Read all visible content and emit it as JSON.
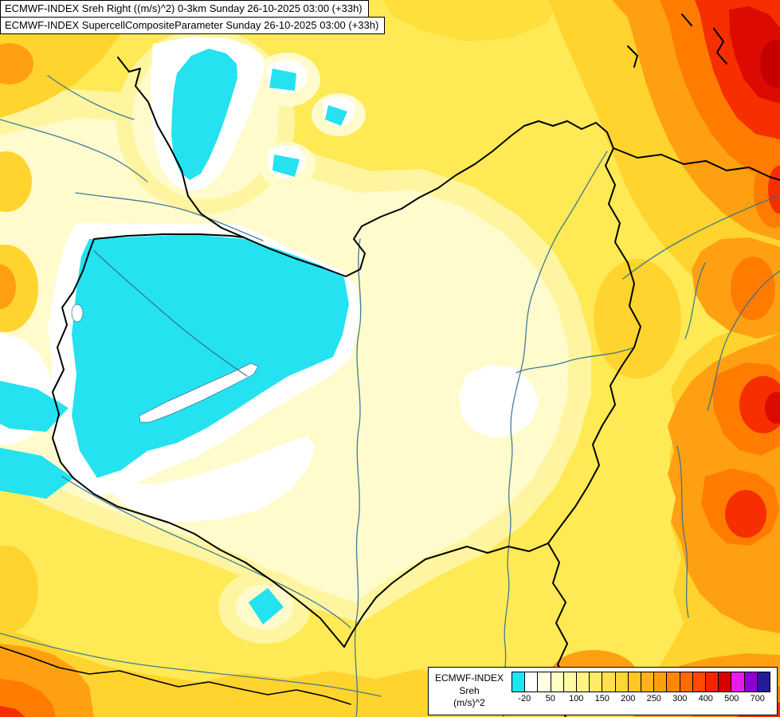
{
  "header": {
    "line1": "ECMWF-INDEX Sreh Right ((m/s)^2) 0-3km Sunday 26-10-2025 03:00 (+33h)",
    "line2": "ECMWF-INDEX SupercellCompositeParameter Sunday 26-10-2025 03:00 (+33h)"
  },
  "legend": {
    "title_line1": "ECMWF-INDEX",
    "title_line2": "Sreh",
    "title_line3": "(m/s)^2",
    "tick_labels": [
      "-20",
      "50",
      "100",
      "150",
      "200",
      "250",
      "300",
      "400",
      "500",
      "700"
    ],
    "colors": [
      "#1FE4F2",
      "#FFFFFF",
      "#FFFFE4",
      "#FFFFC4",
      "#FFF9A4",
      "#FFF286",
      "#FFE969",
      "#FFDF4E",
      "#FFD435",
      "#FFC524",
      "#FFB318",
      "#FF9E0C",
      "#FF8602",
      "#FF6B00",
      "#FF4A00",
      "#F22500",
      "#D90000",
      "#E81CE8",
      "#8F00D4",
      "#241C96"
    ]
  },
  "map_palette": {
    "base_yellow": "#FFE955",
    "pale_band": "#FFF5A0",
    "cream_band": "#FFFBCC",
    "white_band": "#FFFFFF",
    "cyan_band": "#25E2F0",
    "gold_band": "#FFD42E",
    "orange_band": "#FFA012",
    "deep_orange_band": "#FF7C00",
    "red_band": "#F62E00",
    "dark_red_band": "#DC0A00",
    "border_color": "#000000",
    "river_color": "#2E6E96"
  }
}
